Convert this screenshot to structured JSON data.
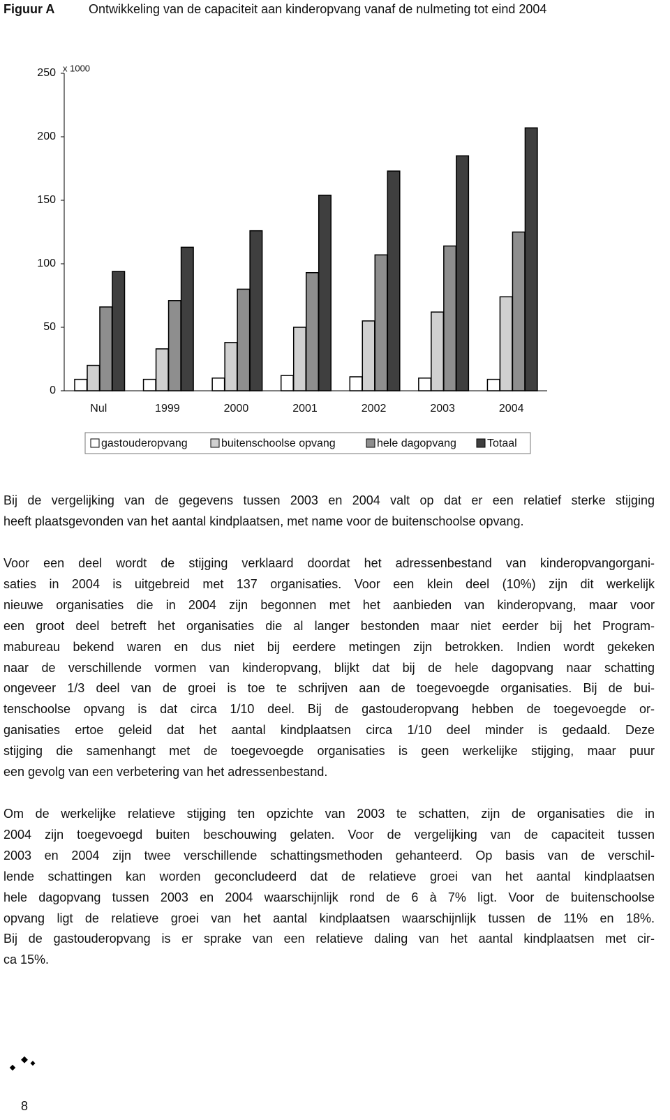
{
  "header": {
    "label": "Figuur A",
    "title": "Ontwikkeling van de capaciteit aan kinderopvang vanaf de nulmeting tot eind 2004"
  },
  "chart_data": {
    "type": "bar",
    "unit_label": "x 1000",
    "categories": [
      "Nul",
      "1999",
      "2000",
      "2001",
      "2002",
      "2003",
      "2004"
    ],
    "series": [
      {
        "name": "gastouderopvang",
        "color": "#ffffff",
        "values": [
          9,
          9,
          10,
          12,
          11,
          10,
          9
        ]
      },
      {
        "name": "buitenschoolse opvang",
        "color": "#d0d0d0",
        "values": [
          20,
          33,
          38,
          50,
          55,
          62,
          74
        ]
      },
      {
        "name": "hele dagopvang",
        "color": "#8e8e8e",
        "values": [
          66,
          71,
          80,
          93,
          107,
          114,
          125
        ]
      },
      {
        "name": "Totaal",
        "color": "#3f3f3f",
        "values": [
          94,
          113,
          126,
          154,
          173,
          185,
          207
        ]
      }
    ],
    "ylim": [
      0,
      250
    ],
    "yticks": [
      0,
      50,
      100,
      150,
      200,
      250
    ],
    "grid": false,
    "legend": "bottom"
  },
  "paragraphs": [
    [
      "Bij de vergelijking van de gegevens tussen 2003 en 2004 valt op dat er een relatief sterke stijging",
      "heeft plaatsgevonden van het aantal kindplaatsen, met name voor de buitenschoolse opvang."
    ],
    [
      "Voor een deel wordt de stijging verklaard doordat het adressenbestand van kinderopvangorgani-",
      "saties in 2004 is uitgebreid met 137 organisaties. Voor een klein deel (10%) zijn dit werkelijk",
      "nieuwe organisaties die in 2004 zijn begonnen met het aanbieden van kinderopvang, maar voor",
      "een groot deel betreft het organisaties die al langer bestonden maar niet eerder bij het Program-",
      "mabureau bekend waren en dus niet bij eerdere metingen zijn betrokken. Indien wordt gekeken",
      "naar de verschillende vormen van kinderopvang, blijkt dat bij de hele dagopvang naar schatting",
      "ongeveer 1/3 deel van de groei is toe te schrijven aan de toegevoegde organisaties. Bij de bui-",
      "tenschoolse opvang is dat circa 1/10 deel. Bij de gastouderopvang hebben de toegevoegde or-",
      "ganisaties ertoe geleid dat het aantal kindplaatsen circa 1/10 deel minder is gedaald. Deze",
      "stijging die samenhangt met de toegevoegde organisaties is geen werkelijke stijging, maar puur",
      "een gevolg van een verbetering van het adressenbestand."
    ],
    [
      "Om de werkelijke relatieve stijging ten opzichte van 2003 te schatten, zijn de organisaties die in",
      "2004 zijn toegevoegd buiten beschouwing gelaten. Voor de vergelijking van de capaciteit tussen",
      "2003 en 2004 zijn twee verschillende schattingsmethoden gehanteerd. Op basis van de verschil-",
      "lende schattingen kan worden geconcludeerd dat de relatieve groei van het aantal kindplaatsen",
      "hele dagopvang tussen 2003 en 2004 waarschijnlijk rond de 6 à 7% ligt. Voor de buitenschoolse",
      "opvang ligt de relatieve groei van het aantal kindplaatsen waarschijnlijk tussen de 11% en 18%.",
      "Bij de gastouderopvang is er sprake van een relatieve daling van het aantal kindplaatsen met cir-",
      "ca 15%."
    ]
  ],
  "page_number": "8"
}
